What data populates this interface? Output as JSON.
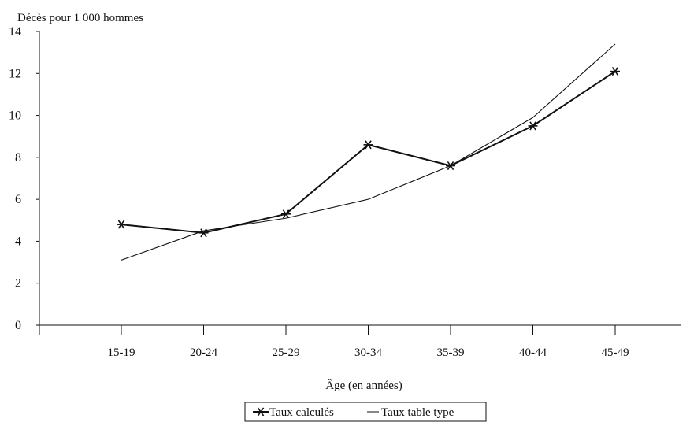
{
  "chart_data": {
    "type": "line",
    "title": "",
    "ylabel": "Décès pour 1 000 hommes",
    "xlabel": "Âge (en années)",
    "categories": [
      "15-19",
      "20-24",
      "25-29",
      "30-34",
      "35-39",
      "40-44",
      "45-49"
    ],
    "ylim": [
      0,
      14
    ],
    "yticks": [
      "0",
      "2",
      "4",
      "6",
      "8",
      "10",
      "12",
      "14"
    ],
    "grid": false,
    "legend_position": "bottom",
    "series": [
      {
        "name": "Taux calculés",
        "values": [
          4.8,
          4.4,
          5.3,
          8.6,
          7.6,
          9.5,
          12.1
        ],
        "marker": "star",
        "color": "#111111"
      },
      {
        "name": "Taux table type",
        "values": [
          3.1,
          4.5,
          5.1,
          6.0,
          7.6,
          9.9,
          13.4
        ],
        "marker": "none",
        "color": "#111111"
      }
    ]
  }
}
